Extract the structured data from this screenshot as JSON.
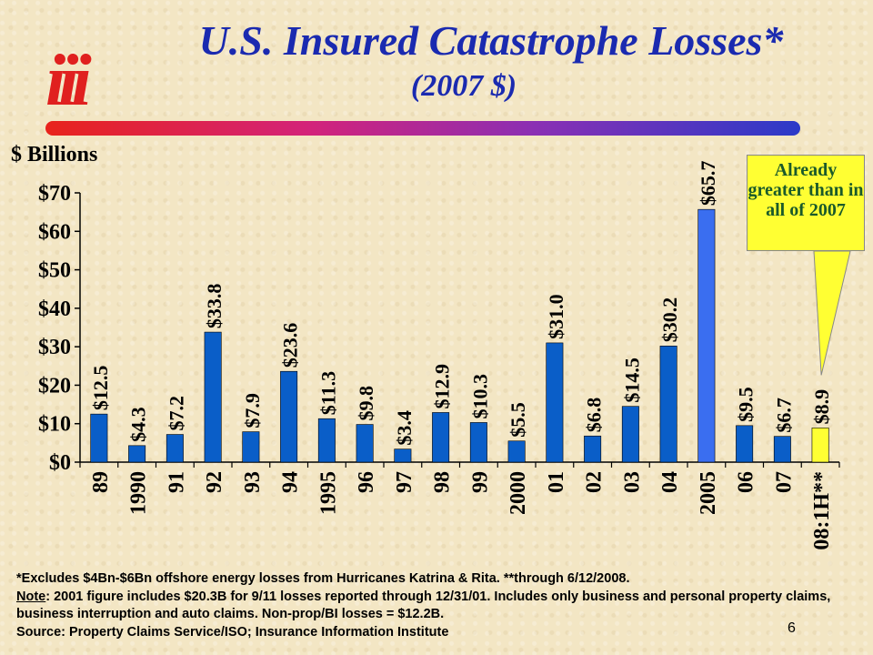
{
  "logo": {
    "text": "iii"
  },
  "title": "U.S. Insured Catastrophe Losses*",
  "subtitle": "(2007 $)",
  "y_unit_label": "$ Billions",
  "callout": {
    "text": "Already greater than in all of 2007"
  },
  "footer": {
    "line1": "*Excludes $4Bn-$6Bn offshore energy losses from Hurricanes Katrina & Rita. **through 6/12/2008.",
    "note_label": "Note",
    "line2": ": 2001 figure includes $20.3B for 9/11 losses reported through 12/31/01.  Includes only business and personal property claims, business interruption and auto claims.  Non-prop/BI losses = $12.2B.",
    "line3": "Source:  Property Claims Service/ISO; Insurance Information Institute"
  },
  "page_number": "6",
  "colors": {
    "bar": "#0a5ec8",
    "bar_2005": "#3a6ef0",
    "bar_2008": "#ffff33",
    "title": "#1a2ab0"
  },
  "chart_data": {
    "type": "bar",
    "categories": [
      "89",
      "1990",
      "91",
      "92",
      "93",
      "94",
      "1995",
      "96",
      "97",
      "98",
      "99",
      "2000",
      "01",
      "02",
      "03",
      "04",
      "2005",
      "06",
      "07",
      "08:1H**"
    ],
    "values": [
      12.5,
      4.3,
      7.2,
      33.8,
      7.9,
      23.6,
      11.3,
      9.8,
      3.4,
      12.9,
      10.3,
      5.5,
      31.0,
      6.8,
      14.5,
      30.2,
      65.7,
      9.5,
      6.7,
      8.9
    ],
    "data_labels": [
      "$12.5",
      "$4.3",
      "$7.2",
      "$33.8",
      "$7.9",
      "$23.6",
      "$11.3",
      "$9.8",
      "$3.4",
      "$12.9",
      "$10.3",
      "$5.5",
      "$31.0",
      "$6.8",
      "$14.5",
      "$30.2",
      "$65.7",
      "$9.5",
      "$6.7",
      "$8.9"
    ],
    "ylim": [
      0,
      70
    ],
    "yticks": [
      0,
      10,
      20,
      30,
      40,
      50,
      60,
      70
    ],
    "ytick_labels": [
      "$0",
      "$10",
      "$20",
      "$30",
      "$40",
      "$50",
      "$60",
      "$70"
    ],
    "title": "U.S. Insured Catastrophe Losses*",
    "ylabel": "$ Billions",
    "xlabel": "",
    "grid": false
  }
}
